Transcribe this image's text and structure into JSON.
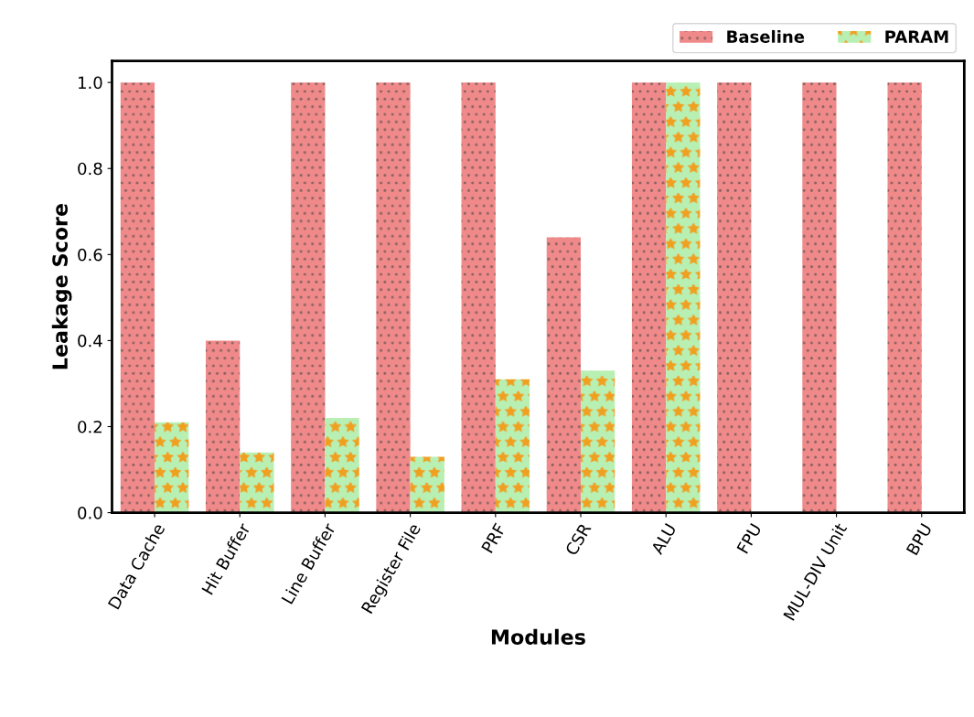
{
  "chart_data": {
    "type": "bar",
    "xlabel": "Modules",
    "ylabel": "Leakage Score",
    "categories": [
      "Data Cache",
      "Hit Buffer",
      "Line Buffer",
      "Register File",
      "PRF",
      "CSR",
      "ALU",
      "FPU",
      "MUL-DIV Unit",
      "BPU"
    ],
    "series": [
      {
        "name": "Baseline",
        "color": "#f08a8a",
        "values": [
          1.0,
          0.4,
          1.0,
          1.0,
          1.0,
          0.64,
          1.0,
          1.0,
          1.0,
          1.0
        ]
      },
      {
        "name": "PARAM",
        "color": "#b8f0b4",
        "values": [
          0.21,
          0.14,
          0.22,
          0.13,
          0.31,
          0.33,
          1.0,
          0,
          0,
          0
        ]
      }
    ],
    "ylim": [
      0,
      1.05
    ],
    "yticks": [
      {
        "value": 0,
        "label": "0.0"
      },
      {
        "value": 0.2,
        "label": "0.2"
      },
      {
        "value": 0.4,
        "label": "0.4"
      },
      {
        "value": 0.6,
        "label": "0.6"
      },
      {
        "value": 0.8,
        "label": "0.8"
      },
      {
        "value": 1.0,
        "label": "1.0"
      }
    ],
    "grid": false,
    "legend": "top right"
  }
}
